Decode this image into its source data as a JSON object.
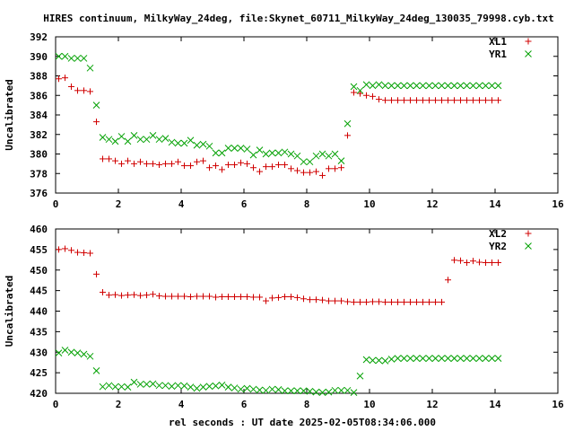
{
  "title": "HIRES continuum, MilkyWay_24deg, file:Skynet_60711_MilkyWay_24deg_130035_79998.cyb.txt",
  "xlabel": "rel seconds : UT date 2025-02-05T08:34:06.000",
  "colors": {
    "plus": "#d00000",
    "cross": "#00a000",
    "axis": "#000000"
  },
  "chart_data": [
    {
      "type": "scatter",
      "ylabel": "Uncalibrated",
      "xlim": [
        0,
        16
      ],
      "ylim": [
        376,
        392
      ],
      "xticks": [
        "0",
        "2",
        "4",
        "6",
        "8",
        "10",
        "12",
        "14",
        "16"
      ],
      "yticks": [
        "376",
        "378",
        "380",
        "382",
        "384",
        "386",
        "388",
        "390",
        "392"
      ],
      "legend_position": "top-right",
      "series": [
        {
          "name": "XL1",
          "marker": "plus",
          "x": [
            0.1,
            0.3,
            0.5,
            0.7,
            0.9,
            1.1,
            1.3,
            1.5,
            1.7,
            1.9,
            2.1,
            2.3,
            2.5,
            2.7,
            2.9,
            3.1,
            3.3,
            3.5,
            3.7,
            3.9,
            4.1,
            4.3,
            4.5,
            4.7,
            4.9,
            5.1,
            5.3,
            5.5,
            5.7,
            5.9,
            6.1,
            6.3,
            6.5,
            6.7,
            6.9,
            7.1,
            7.3,
            7.5,
            7.7,
            7.9,
            8.1,
            8.3,
            8.5,
            8.7,
            8.9,
            9.1,
            9.3,
            9.5,
            9.7,
            9.9,
            10.1,
            10.3,
            10.5,
            10.7,
            10.9,
            11.1,
            11.3,
            11.5,
            11.7,
            11.9,
            12.1,
            12.3,
            12.5,
            12.7,
            12.9,
            13.1,
            13.3,
            13.5,
            13.7,
            13.9,
            14.1
          ],
          "y": [
            387.7,
            387.8,
            386.9,
            386.5,
            386.5,
            386.4,
            383.3,
            379.5,
            379.5,
            379.3,
            379.0,
            379.3,
            379.0,
            379.2,
            379.0,
            379.0,
            378.9,
            379.0,
            379.0,
            379.2,
            378.8,
            378.8,
            379.2,
            379.3,
            378.6,
            378.8,
            378.4,
            378.9,
            378.9,
            379.1,
            379.0,
            378.6,
            378.2,
            378.7,
            378.7,
            378.9,
            378.9,
            378.5,
            378.3,
            378.1,
            378.1,
            378.2,
            377.8,
            378.5,
            378.5,
            378.6,
            381.9,
            386.3,
            386.2,
            386.0,
            385.9,
            385.6,
            385.5,
            385.5,
            385.5,
            385.5,
            385.5,
            385.5,
            385.5,
            385.5,
            385.5,
            385.5,
            385.5,
            385.5,
            385.5,
            385.5,
            385.5,
            385.5,
            385.5,
            385.5,
            385.5
          ]
        },
        {
          "name": "YR1",
          "marker": "cross",
          "x": [
            0.1,
            0.3,
            0.5,
            0.7,
            0.9,
            1.1,
            1.3,
            1.5,
            1.7,
            1.9,
            2.1,
            2.3,
            2.5,
            2.7,
            2.9,
            3.1,
            3.3,
            3.5,
            3.7,
            3.9,
            4.1,
            4.3,
            4.5,
            4.7,
            4.9,
            5.1,
            5.3,
            5.5,
            5.7,
            5.9,
            6.1,
            6.3,
            6.5,
            6.7,
            6.9,
            7.1,
            7.3,
            7.5,
            7.7,
            7.9,
            8.1,
            8.3,
            8.5,
            8.7,
            8.9,
            9.1,
            9.3,
            9.5,
            9.7,
            9.9,
            10.1,
            10.3,
            10.5,
            10.7,
            10.9,
            11.1,
            11.3,
            11.5,
            11.7,
            11.9,
            12.1,
            12.3,
            12.5,
            12.7,
            12.9,
            13.1,
            13.3,
            13.5,
            13.7,
            13.9,
            14.1
          ],
          "y": [
            390.0,
            390.0,
            389.8,
            389.8,
            389.8,
            388.8,
            385.0,
            381.7,
            381.5,
            381.3,
            381.8,
            381.3,
            381.9,
            381.5,
            381.5,
            381.9,
            381.5,
            381.6,
            381.2,
            381.1,
            381.1,
            381.4,
            380.9,
            381.0,
            380.8,
            380.1,
            380.1,
            380.6,
            380.6,
            380.6,
            380.5,
            379.9,
            380.4,
            380.0,
            380.1,
            380.1,
            380.2,
            380.0,
            379.8,
            379.2,
            379.2,
            379.8,
            380.0,
            379.8,
            380.0,
            379.3,
            383.1,
            386.9,
            386.5,
            387.1,
            387.0,
            387.1,
            387.0,
            387.0,
            387.0,
            387.0,
            387.0,
            387.0,
            387.0,
            387.0,
            387.0,
            387.0,
            387.0,
            387.0,
            387.0,
            387.0,
            387.0,
            387.0,
            387.0,
            387.0,
            387.0
          ]
        }
      ]
    },
    {
      "type": "scatter",
      "ylabel": "Uncalibrated",
      "xlim": [
        0,
        16
      ],
      "ylim": [
        420,
        460
      ],
      "xticks": [
        "0",
        "2",
        "4",
        "6",
        "8",
        "10",
        "12",
        "14",
        "16"
      ],
      "yticks": [
        "420",
        "425",
        "430",
        "435",
        "440",
        "445",
        "450",
        "455",
        "460"
      ],
      "legend_position": "top-right",
      "series": [
        {
          "name": "XL2",
          "marker": "plus",
          "x": [
            0.1,
            0.3,
            0.5,
            0.7,
            0.9,
            1.1,
            1.3,
            1.5,
            1.7,
            1.9,
            2.1,
            2.3,
            2.5,
            2.7,
            2.9,
            3.1,
            3.3,
            3.5,
            3.7,
            3.9,
            4.1,
            4.3,
            4.5,
            4.7,
            4.9,
            5.1,
            5.3,
            5.5,
            5.7,
            5.9,
            6.1,
            6.3,
            6.5,
            6.7,
            6.9,
            7.1,
            7.3,
            7.5,
            7.7,
            7.9,
            8.1,
            8.3,
            8.5,
            8.7,
            8.9,
            9.1,
            9.3,
            9.5,
            9.7,
            9.9,
            10.1,
            10.3,
            10.5,
            10.7,
            10.9,
            11.1,
            11.3,
            11.5,
            11.7,
            11.9,
            12.1,
            12.3,
            12.5,
            12.7,
            12.9,
            13.1,
            13.3,
            13.5,
            13.7,
            13.9,
            14.1
          ],
          "y": [
            455.0,
            455.2,
            454.8,
            454.3,
            454.2,
            454.1,
            449.0,
            444.6,
            443.9,
            444.0,
            443.8,
            443.9,
            444.0,
            443.8,
            443.9,
            444.1,
            443.7,
            443.6,
            443.6,
            443.6,
            443.6,
            443.5,
            443.6,
            443.6,
            443.6,
            443.4,
            443.5,
            443.5,
            443.5,
            443.5,
            443.5,
            443.4,
            443.4,
            442.5,
            443.2,
            443.3,
            443.5,
            443.5,
            443.3,
            443.0,
            442.8,
            442.8,
            442.7,
            442.5,
            442.5,
            442.5,
            442.3,
            442.2,
            442.2,
            442.2,
            442.3,
            442.3,
            442.2,
            442.2,
            442.2,
            442.2,
            442.2,
            442.2,
            442.2,
            442.2,
            442.2,
            442.2,
            447.6,
            452.4,
            452.3,
            451.8,
            452.2,
            451.9,
            451.8,
            451.8,
            451.8
          ]
        },
        {
          "name": "YR2",
          "marker": "cross",
          "x": [
            0.1,
            0.3,
            0.5,
            0.7,
            0.9,
            1.1,
            1.3,
            1.5,
            1.7,
            1.9,
            2.1,
            2.3,
            2.5,
            2.7,
            2.9,
            3.1,
            3.3,
            3.5,
            3.7,
            3.9,
            4.1,
            4.3,
            4.5,
            4.7,
            4.9,
            5.1,
            5.3,
            5.5,
            5.7,
            5.9,
            6.1,
            6.3,
            6.5,
            6.7,
            6.9,
            7.1,
            7.3,
            7.5,
            7.7,
            7.9,
            8.1,
            8.3,
            8.5,
            8.7,
            8.9,
            9.1,
            9.3,
            9.5,
            9.7,
            9.9,
            10.1,
            10.3,
            10.5,
            10.7,
            10.9,
            11.1,
            11.3,
            11.5,
            11.7,
            11.9,
            12.1,
            12.3,
            12.5,
            12.7,
            12.9,
            13.1,
            13.3,
            13.5,
            13.7,
            13.9,
            14.1
          ],
          "y": [
            429.8,
            430.5,
            430.0,
            429.8,
            429.5,
            429.0,
            425.5,
            421.6,
            421.9,
            421.6,
            421.6,
            421.5,
            422.7,
            422.2,
            422.2,
            422.3,
            421.9,
            421.9,
            421.7,
            421.9,
            421.8,
            421.5,
            421.2,
            421.5,
            421.7,
            421.8,
            422.0,
            421.5,
            421.3,
            421.0,
            421.2,
            421.0,
            420.8,
            420.7,
            421.0,
            420.9,
            420.6,
            420.6,
            420.6,
            420.6,
            420.5,
            420.3,
            420.2,
            420.3,
            420.7,
            420.7,
            420.7,
            420.2,
            424.2,
            428.2,
            428.0,
            428.0,
            427.9,
            428.3,
            428.5,
            428.5,
            428.5,
            428.5,
            428.5,
            428.5,
            428.5,
            428.5,
            428.5,
            428.5,
            428.5,
            428.5,
            428.5,
            428.5,
            428.5,
            428.5,
            428.5
          ]
        }
      ]
    }
  ]
}
